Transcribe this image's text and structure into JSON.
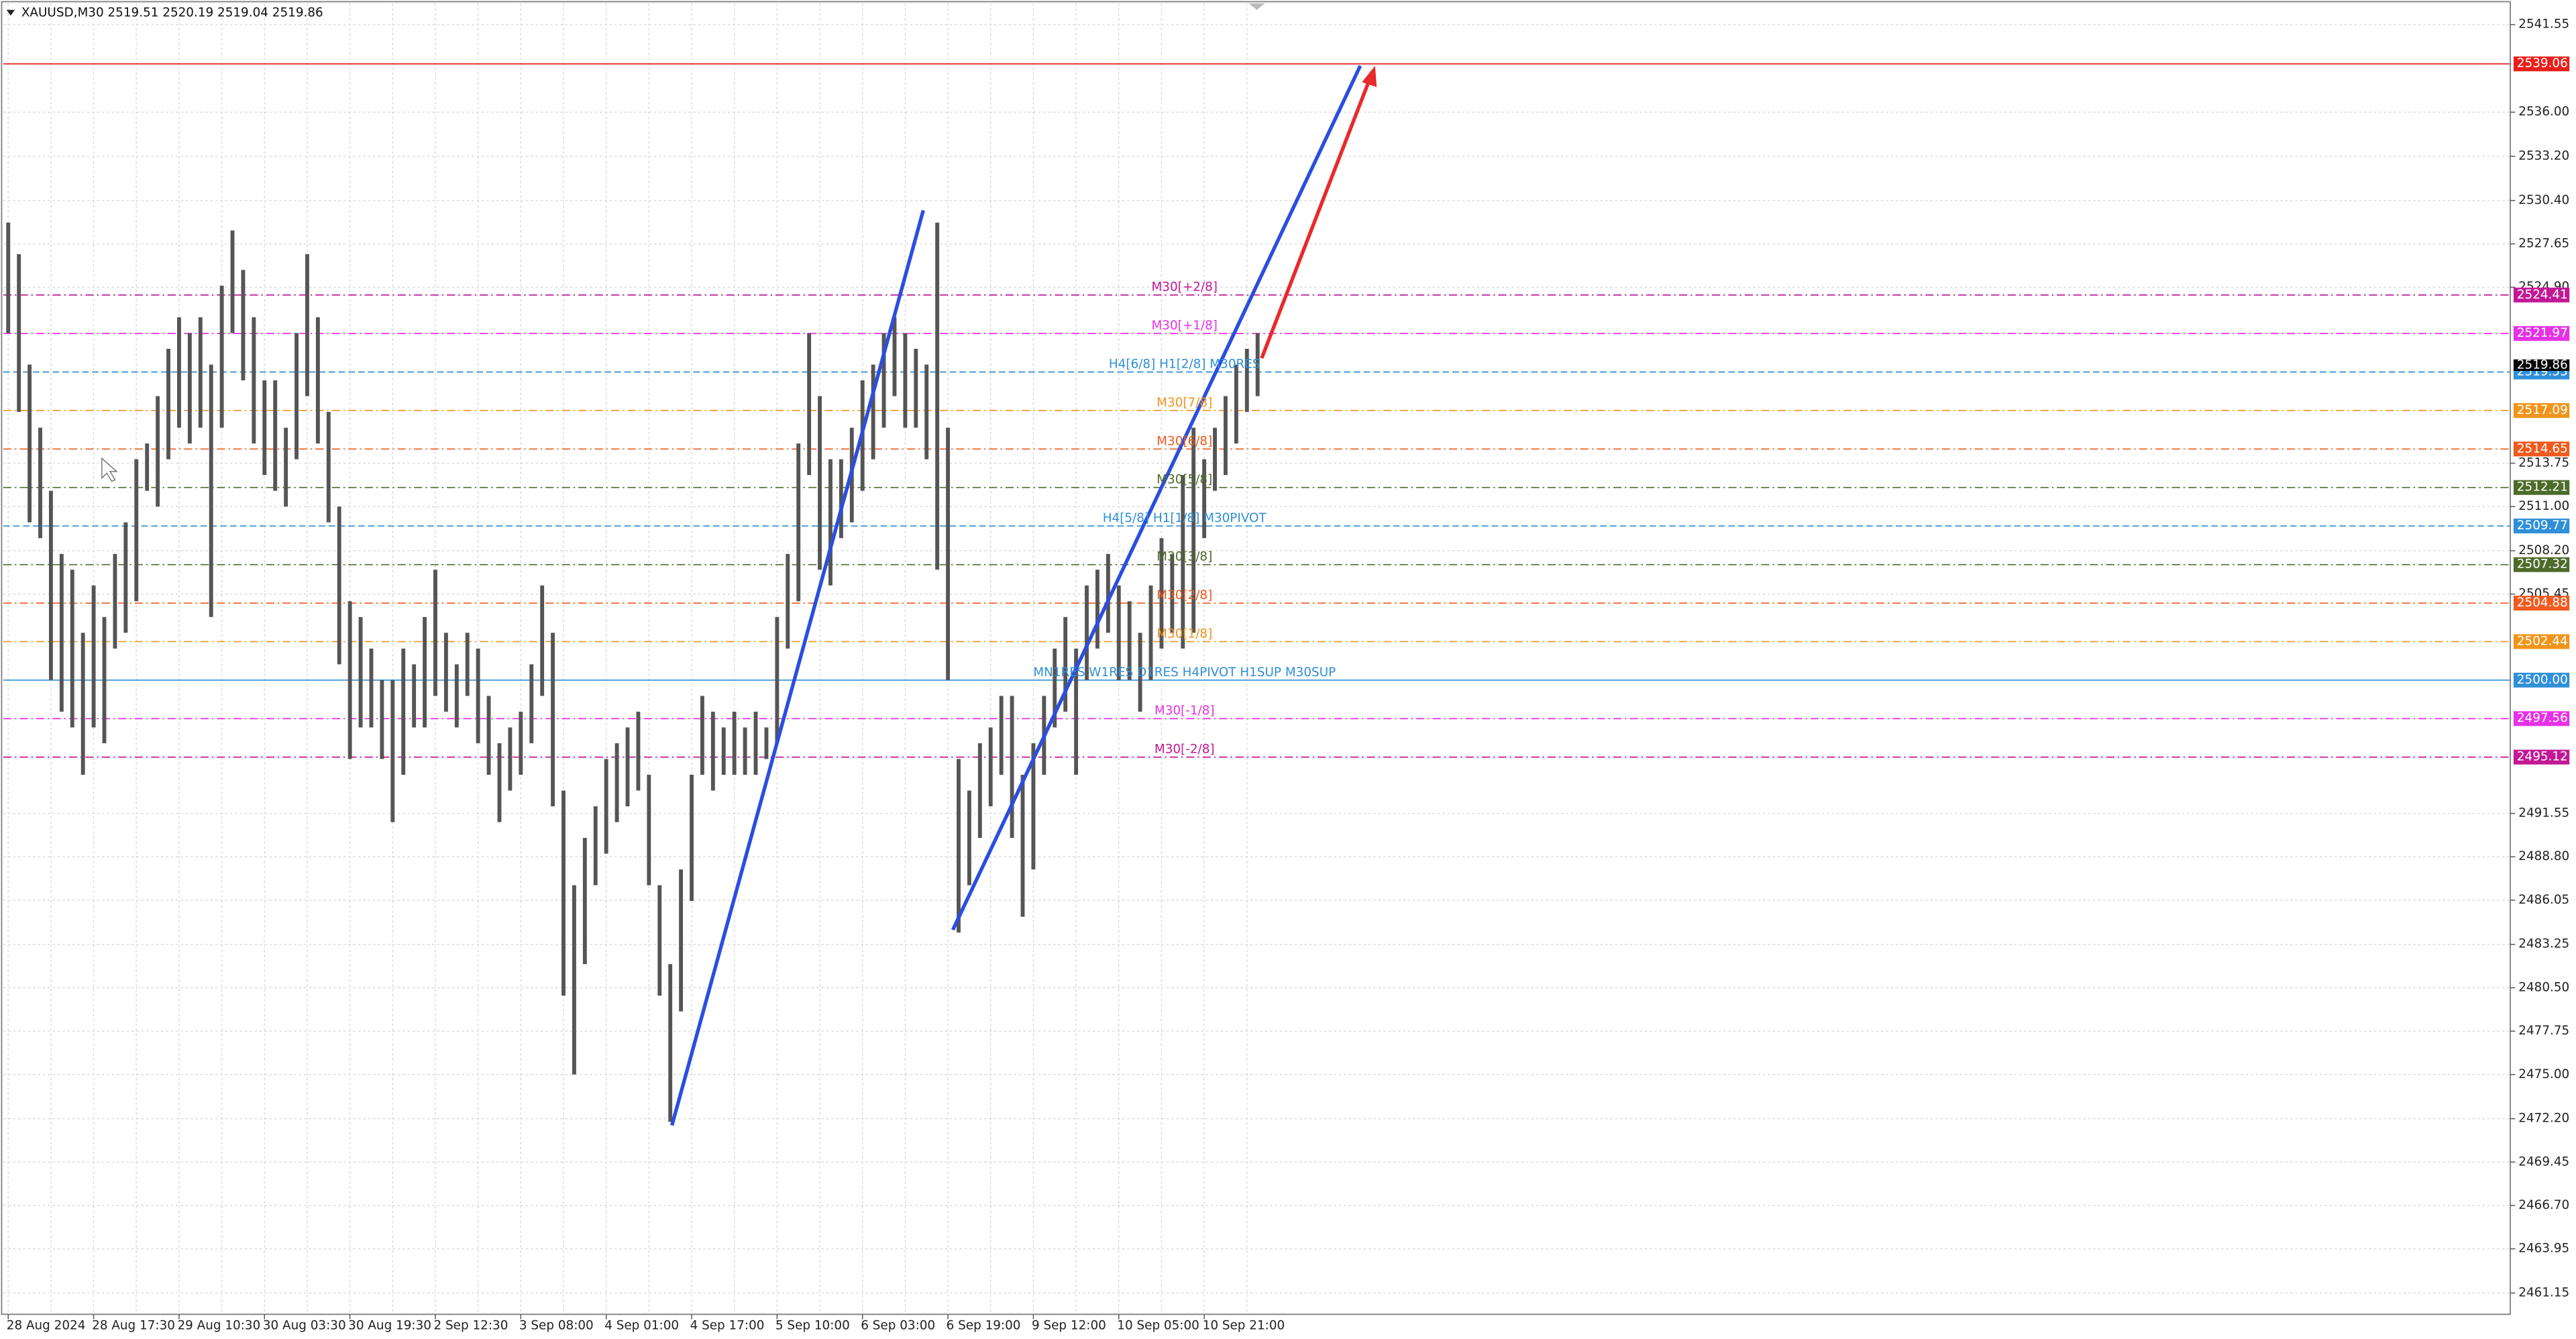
{
  "chart_data": {
    "type": "candlestick",
    "title": "XAUUSD,M30  2519.51 2520.19 2519.04 2519.86",
    "categories": [
      "28 Aug 2024",
      null,
      null,
      null,
      null,
      null,
      null,
      null,
      "28 Aug 17:30",
      null,
      null,
      null,
      null,
      null,
      null,
      null,
      "29 Aug 10:30",
      null,
      null,
      null,
      null,
      null,
      null,
      null,
      "30 Aug 03:30",
      null,
      null,
      null,
      null,
      null,
      null,
      null,
      "30 Aug 19:30",
      null,
      null,
      null,
      null,
      null,
      null,
      null,
      "2 Sep 12:30",
      null,
      null,
      null,
      null,
      null,
      null,
      null,
      "3 Sep 08:00",
      null,
      null,
      null,
      null,
      null,
      null,
      null,
      "4 Sep 01:00",
      null,
      null,
      null,
      null,
      null,
      null,
      null,
      "4 Sep 17:00",
      null,
      null,
      null,
      null,
      null,
      null,
      null,
      "5 Sep 10:00",
      null,
      null,
      null,
      null,
      null,
      null,
      null,
      "6 Sep 03:00",
      null,
      null,
      null,
      null,
      null,
      null,
      null,
      "6 Sep 19:00",
      null,
      null,
      null,
      null,
      null,
      null,
      null,
      "9 Sep 12:00",
      null,
      null,
      null,
      null,
      null,
      null,
      null,
      "10 Sep 05:00",
      null,
      null,
      null,
      null,
      null,
      null,
      null,
      "10 Sep 21:00",
      null,
      null,
      null,
      null,
      null
    ],
    "high": [
      2529,
      2527,
      2520,
      2516,
      2512,
      2508,
      2507,
      2503,
      2506,
      2504,
      2508,
      2510,
      2514,
      2515,
      2518,
      2521,
      2523,
      2522,
      2523,
      2520,
      2525,
      2528.5,
      2526,
      2523,
      2519,
      2519,
      2516,
      2522,
      2527,
      2523,
      2517,
      2511,
      2505,
      2504,
      2502,
      2500,
      2500,
      2502,
      2501,
      2504,
      2507,
      2503,
      2501,
      2503,
      2502,
      2499,
      2496,
      2497,
      2498,
      2501,
      2506,
      2503,
      2493,
      2487,
      2490,
      2492,
      2495,
      2496,
      2497,
      2498,
      2494,
      2487,
      2482,
      2488,
      2494,
      2499,
      2498,
      2497,
      2498,
      2497,
      2498,
      2497,
      2504,
      2508,
      2515,
      2522,
      2518,
      2514,
      2514,
      2516,
      2519,
      2520,
      2522,
      2523,
      2522,
      2521,
      2520,
      2529,
      2516,
      2495,
      2493,
      2496,
      2497,
      2499,
      2499,
      2494,
      2496,
      2499,
      2502,
      2504,
      2502,
      2506,
      2507,
      2508,
      2506,
      2505,
      2503,
      2506,
      2509,
      2508,
      2513,
      2516,
      2514,
      2516,
      2518,
      2520,
      2521,
      2522
    ],
    "low": [
      2522,
      2517,
      2510,
      2509,
      2500,
      2498,
      2497,
      2494,
      2497,
      2496,
      2502,
      2503,
      2505,
      2512,
      2511,
      2514,
      2516,
      2515,
      2516,
      2504,
      2516,
      2522,
      2519,
      2515,
      2513,
      2512,
      2511,
      2514,
      2518,
      2515,
      2510,
      2501,
      2495,
      2497,
      2497,
      2495,
      2491,
      2494,
      2497,
      2497,
      2499,
      2498,
      2497,
      2499,
      2496,
      2494,
      2491,
      2493,
      2494,
      2496,
      2499,
      2492,
      2480,
      2475,
      2482,
      2487,
      2489,
      2491,
      2492,
      2493,
      2487,
      2480,
      2472,
      2479,
      2486,
      2494,
      2493,
      2494,
      2494,
      2494,
      2494,
      2495,
      2496,
      2502,
      2505,
      2513,
      2507,
      2506,
      2509,
      2510,
      2512,
      2514,
      2516,
      2518,
      2516,
      2516,
      2514,
      2507,
      2500,
      2484,
      2487,
      2490,
      2492,
      2494,
      2490,
      2485,
      2488,
      2494,
      2497,
      2498,
      2494,
      2500,
      2502,
      2503,
      2500,
      2500,
      2498,
      2500,
      2502,
      2503,
      2502,
      2503,
      2509,
      2512,
      2513,
      2515,
      2517,
      2518
    ],
    "color": "#555555",
    "ylim": [
      2459.8,
      2542.9
    ],
    "yticks": [
      2541.55,
      {
        "value": 2536,
        "label": "2536.00"
      },
      {
        "value": 2533.2,
        "label": "2533.20"
      },
      {
        "value": 2530.4,
        "label": "2530.40"
      },
      2527.65,
      {
        "value": 2524.9,
        "label": "2524.90"
      },
      2513.75,
      {
        "value": 2511,
        "label": "2511.00"
      },
      {
        "value": 2508.2,
        "label": "2508.20"
      },
      2505.45,
      2491.55,
      {
        "value": 2488.8,
        "label": "2488.80"
      },
      2486.05,
      2483.25,
      {
        "value": 2480.5,
        "label": "2480.50"
      },
      2477.75,
      {
        "value": 2475,
        "label": "2475.00"
      },
      {
        "value": 2472.2,
        "label": "2472.20"
      },
      2469.45,
      {
        "value": 2466.7,
        "label": "2466.70"
      },
      2463.95,
      2461.15
    ],
    "grid": true,
    "levels": [
      {
        "value": 2539.06,
        "color": "#e8201b",
        "style": "solid"
      },
      {
        "name": "M30[+2/8]",
        "value": 2524.41,
        "color": "#c21896",
        "style": "dashdot"
      },
      {
        "name": "M30[+1/8]",
        "value": 2521.97,
        "color": "#e632e6",
        "style": "dashdot"
      },
      {
        "name": "H4[6/8] H1[2/8] M30RES",
        "value": 2519.53,
        "color": "#2f8fd8",
        "style": "dashed"
      },
      {
        "name": "M30[7/8]",
        "value": 2517.09,
        "color": "#f0941c",
        "style": "dashdot"
      },
      {
        "name": "M30[6/8]",
        "value": 2514.65,
        "color": "#f05a1e",
        "style": "dashdot"
      },
      {
        "name": "M30[5/8]",
        "value": 2512.21,
        "color": "#4d6b2a",
        "style": "dashdot"
      },
      {
        "name": "H4[5/8] H1[1/8] M30PIVOT",
        "value": 2509.77,
        "color": "#2f8fd8",
        "style": "dashed"
      },
      {
        "name": "M30[3/8]",
        "value": 2507.32,
        "color": "#4d6b2a",
        "style": "dashdot"
      },
      {
        "name": "M30[2/8]",
        "value": 2504.88,
        "color": "#f05a1e",
        "style": "dashdot"
      },
      {
        "name": "M30[1/8]",
        "value": 2502.44,
        "color": "#f0941c",
        "style": "dashdot"
      },
      {
        "name": "MN1RES W1RES D1RES H4PIVOT H1SUP M30SUP",
        "value": 2500,
        "value_label": "2500.00",
        "color": "#2f8fd8",
        "style": "solid"
      },
      {
        "name": "M30[-1/8]",
        "value": 2497.56,
        "color": "#e632e6",
        "style": "dashdot"
      },
      {
        "name": "M30[-2/8]",
        "value": 2495.12,
        "color": "#c21896",
        "style": "dashdot"
      }
    ],
    "last": 2519.86
  }
}
